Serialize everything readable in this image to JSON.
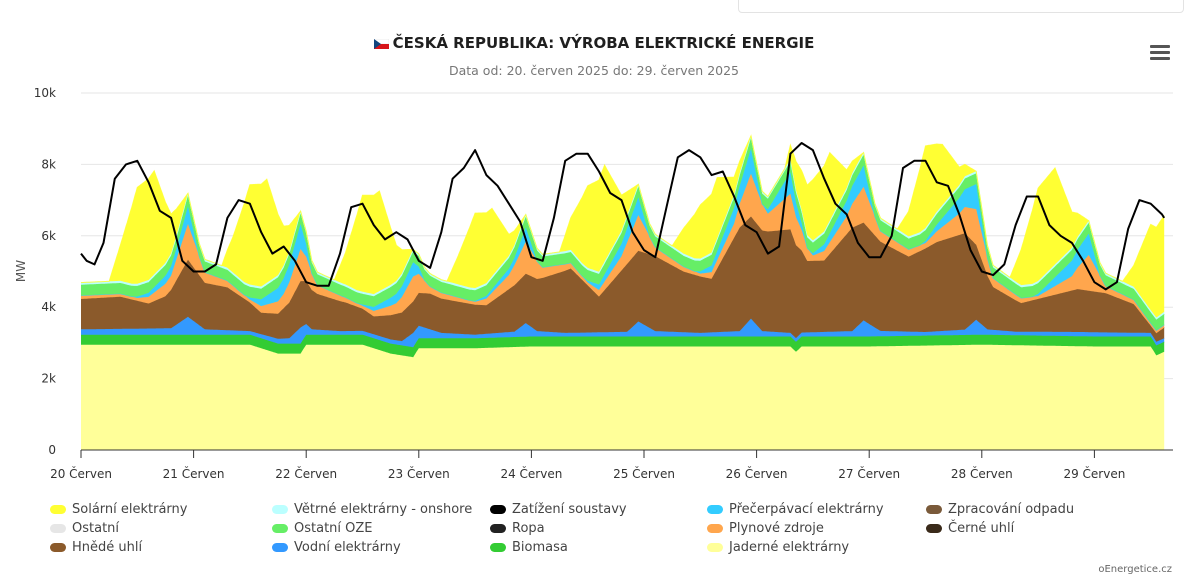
{
  "header": {
    "title": "ČESKÁ REPUBLIKA: VÝROBA ELEKTRICKÉ ENERGIE",
    "subtitle": "Data od: 20. červen 2025 do: 29. červen 2025"
  },
  "footer": {
    "credit": "oEnergetice.cz"
  },
  "chart_data": {
    "type": "area",
    "stacked": true,
    "ylabel": "MW",
    "ylim": [
      0,
      10000
    ],
    "yticks": [
      "0",
      "2k",
      "4k",
      "6k",
      "8k",
      "10k"
    ],
    "x_tick_labels": [
      "20 Červen",
      "21 Červen",
      "22 Červen",
      "23 Červen",
      "24 Červen",
      "25 Červen",
      "26 Červen",
      "27 Červen",
      "28 Červen",
      "29 Červen"
    ],
    "x_start_day": 20,
    "x_end_day": 29.62,
    "grid": true,
    "legend_position": "bottom",
    "legend": [
      "Solární elektrárny",
      "Větrné elektrárny - onshore",
      "Zatížení soustavy",
      "Přečerpávací elektrárny",
      "Zpracování odpadu",
      "Ostatní",
      "Ostatní OZE",
      "Ropa",
      "Plynové zdroje",
      "Černé uhlí",
      "Hnědé uhlí",
      "Vodní elektrárny",
      "Biomasa",
      "Jaderné elektrárny"
    ],
    "series": [
      {
        "name": "Jaderné elektrárny",
        "color": "#ffff99",
        "kind": "area",
        "x": [
          20,
          20.5,
          21.5,
          21.75,
          21.95,
          22,
          22.5,
          22.75,
          22.95,
          23,
          23.5,
          24,
          25,
          26,
          26.3,
          26.35,
          26.4,
          26.5,
          27,
          28,
          29,
          29.5,
          29.55,
          29.62
        ],
        "y": [
          2950,
          2950,
          2950,
          2700,
          2700,
          2950,
          2950,
          2700,
          2600,
          2850,
          2850,
          2900,
          2900,
          2900,
          2900,
          2750,
          2900,
          2900,
          2900,
          2950,
          2900,
          2900,
          2650,
          2750
        ]
      },
      {
        "name": "Biomasa",
        "color": "#33cc33",
        "kind": "area",
        "x": [
          20,
          29.62
        ],
        "y": [
          280,
          280
        ]
      },
      {
        "name": "Vodní elektrárny",
        "color": "#3399ff",
        "kind": "area",
        "x": [
          20,
          20.8,
          20.95,
          21.1,
          21.5,
          21.85,
          21.95,
          22.05,
          22.3,
          22.85,
          22.95,
          23.2,
          23.5,
          23.85,
          23.95,
          24.05,
          24.3,
          24.85,
          24.95,
          25.1,
          25.5,
          25.85,
          25.95,
          26.05,
          26.3,
          26.85,
          26.95,
          27.1,
          27.5,
          27.85,
          27.95,
          28.05,
          28.3,
          28.9,
          29.5,
          29.62
        ],
        "y": [
          150,
          180,
          500,
          150,
          100,
          150,
          450,
          150,
          100,
          120,
          400,
          150,
          100,
          150,
          380,
          150,
          100,
          130,
          420,
          150,
          100,
          150,
          500,
          150,
          100,
          150,
          450,
          150,
          100,
          150,
          420,
          150,
          100,
          120,
          100,
          100
        ]
      },
      {
        "name": "Hnědé uhlí",
        "color": "#8b5a2b",
        "kind": "area",
        "x": [
          20,
          20.35,
          20.6,
          20.75,
          20.95,
          21.1,
          21.3,
          21.6,
          21.75,
          21.95,
          22.1,
          22.35,
          22.6,
          22.85,
          23.1,
          23.35,
          23.6,
          23.85,
          24.1,
          24.35,
          24.6,
          24.85,
          25.1,
          25.35,
          25.6,
          25.85,
          26.1,
          26.3,
          26.45,
          26.6,
          26.85,
          27.1,
          27.35,
          27.6,
          27.85,
          28.1,
          28.35,
          28.6,
          28.85,
          29.1,
          29.35,
          29.5,
          29.62
        ],
        "y": [
          850,
          900,
          700,
          900,
          1600,
          1300,
          1200,
          600,
          700,
          1300,
          1000,
          800,
          500,
          800,
          1000,
          900,
          800,
          1300,
          1500,
          1800,
          1000,
          1900,
          2100,
          1700,
          1500,
          2900,
          2800,
          2900,
          2000,
          2000,
          2900,
          2500,
          2100,
          2500,
          2700,
          1200,
          800,
          1000,
          1200,
          1100,
          800,
          200,
          300
        ]
      },
      {
        "name": "Plynové zdroje",
        "color": "#ffa64d",
        "kind": "area",
        "x": [
          20,
          20.5,
          20.8,
          20.95,
          21.1,
          21.5,
          21.8,
          21.95,
          22.1,
          22.5,
          22.8,
          22.95,
          23.1,
          23.5,
          23.8,
          23.95,
          24.1,
          24.5,
          24.8,
          24.95,
          25.1,
          25.5,
          25.8,
          25.95,
          26.1,
          26.3,
          26.5,
          26.8,
          26.95,
          27.1,
          27.5,
          27.8,
          27.95,
          28.1,
          28.5,
          28.8,
          28.95,
          29.1,
          29.5,
          29.62
        ],
        "y": [
          100,
          80,
          400,
          1000,
          300,
          80,
          400,
          900,
          250,
          80,
          300,
          700,
          200,
          80,
          400,
          900,
          300,
          80,
          400,
          1000,
          250,
          80,
          400,
          1200,
          500,
          1000,
          150,
          500,
          1000,
          300,
          150,
          600,
          1000,
          250,
          80,
          400,
          1000,
          200,
          80,
          80
        ]
      },
      {
        "name": "Přečerpávací elektrárny",
        "color": "#33ccff",
        "kind": "area",
        "x": [
          20,
          20.45,
          20.85,
          20.95,
          21.05,
          21.45,
          21.85,
          21.95,
          22.05,
          22.45,
          22.85,
          22.95,
          23.05,
          23.45,
          23.85,
          23.95,
          24.05,
          24.45,
          24.85,
          24.95,
          25.05,
          25.45,
          25.85,
          25.95,
          26.05,
          26.3,
          26.45,
          26.85,
          26.95,
          27.05,
          27.45,
          27.85,
          27.95,
          28.05,
          28.45,
          28.85,
          28.95,
          29.05,
          29.45,
          29.62
        ],
        "y": [
          0,
          0,
          300,
          500,
          0,
          0,
          500,
          700,
          0,
          0,
          300,
          400,
          0,
          0,
          200,
          400,
          0,
          0,
          400,
          500,
          0,
          0,
          500,
          700,
          0,
          600,
          0,
          500,
          600,
          0,
          0,
          500,
          700,
          0,
          0,
          500,
          600,
          0,
          0,
          0
        ]
      },
      {
        "name": "Ostatní OZE",
        "color": "#66ee66",
        "kind": "area",
        "x": [
          20,
          29.62
        ],
        "y": [
          300,
          300
        ]
      },
      {
        "name": "Větrné elektrárny - onshore",
        "color": "#bbffff",
        "kind": "area",
        "x": [
          20,
          29.62
        ],
        "y": [
          60,
          60
        ]
      },
      {
        "name": "Solární elektrárny",
        "color": "#ffff33",
        "kind": "area",
        "x": [
          20,
          20.25,
          20.35,
          20.5,
          20.65,
          20.8,
          20.95,
          21.25,
          21.35,
          21.5,
          21.65,
          21.8,
          21.95,
          22.25,
          22.35,
          22.5,
          22.65,
          22.8,
          22.95,
          23.25,
          23.35,
          23.5,
          23.65,
          23.8,
          23.95,
          24.25,
          24.35,
          24.5,
          24.65,
          24.8,
          24.95,
          25.25,
          25.35,
          25.5,
          25.65,
          25.8,
          25.95,
          26.25,
          26.35,
          26.5,
          26.65,
          26.8,
          26.95,
          27.25,
          27.35,
          27.5,
          27.65,
          27.8,
          27.95,
          28.25,
          28.35,
          28.5,
          28.65,
          28.8,
          28.95,
          29.25,
          29.35,
          29.5,
          29.62
        ],
        "y": [
          0,
          0,
          1000,
          2700,
          2900,
          1100,
          0,
          0,
          1000,
          2800,
          2900,
          1100,
          0,
          0,
          900,
          2700,
          2800,
          1000,
          0,
          0,
          800,
          2100,
          1900,
          600,
          0,
          0,
          900,
          2300,
          2700,
          1000,
          0,
          0,
          700,
          1500,
          1700,
          500,
          0,
          0,
          800,
          1700,
          1900,
          500,
          0,
          0,
          700,
          2300,
          1700,
          500,
          0,
          0,
          1000,
          2600,
          2700,
          1000,
          0,
          0,
          600,
          2400,
          2700
        ]
      },
      {
        "name": "Zatížení soustavy",
        "color": "#000000",
        "kind": "line",
        "x": [
          20,
          20.05,
          20.12,
          20.2,
          20.3,
          20.4,
          20.5,
          20.6,
          20.7,
          20.8,
          20.9,
          21,
          21.1,
          21.2,
          21.3,
          21.4,
          21.5,
          21.6,
          21.7,
          21.8,
          21.9,
          22,
          22.1,
          22.2,
          22.3,
          22.4,
          22.5,
          22.6,
          22.7,
          22.8,
          22.9,
          23,
          23.1,
          23.2,
          23.3,
          23.4,
          23.5,
          23.6,
          23.7,
          23.8,
          23.9,
          24,
          24.1,
          24.2,
          24.3,
          24.4,
          24.5,
          24.6,
          24.7,
          24.8,
          24.9,
          25,
          25.1,
          25.2,
          25.3,
          25.4,
          25.5,
          25.6,
          25.7,
          25.8,
          25.9,
          26,
          26.1,
          26.2,
          26.3,
          26.4,
          26.5,
          26.6,
          26.7,
          26.8,
          26.9,
          27,
          27.1,
          27.2,
          27.3,
          27.4,
          27.5,
          27.6,
          27.7,
          27.8,
          27.9,
          28,
          28.1,
          28.2,
          28.3,
          28.4,
          28.5,
          28.6,
          28.7,
          28.8,
          28.9,
          29,
          29.1,
          29.2,
          29.3,
          29.4,
          29.5,
          29.6,
          29.62
        ],
        "y": [
          5500,
          5300,
          5200,
          5800,
          7600,
          8000,
          8100,
          7500,
          6700,
          6500,
          5300,
          5000,
          5000,
          5200,
          6500,
          7000,
          6900,
          6100,
          5500,
          5700,
          5300,
          4700,
          4600,
          4600,
          5500,
          6800,
          6900,
          6300,
          5900,
          6100,
          5900,
          5300,
          5100,
          6100,
          7600,
          7900,
          8400,
          7700,
          7400,
          6900,
          6400,
          5400,
          5300,
          6500,
          8100,
          8300,
          8300,
          7800,
          7200,
          7000,
          6100,
          5600,
          5400,
          6800,
          8200,
          8400,
          8200,
          7700,
          7800,
          7100,
          6300,
          6100,
          5500,
          5700,
          8300,
          8600,
          8400,
          7600,
          6900,
          6600,
          5800,
          5400,
          5400,
          6000,
          7900,
          8100,
          8100,
          7500,
          7400,
          6600,
          5600,
          5000,
          4900,
          5200,
          6300,
          7100,
          7100,
          6300,
          6000,
          5800,
          5300,
          4700,
          4500,
          4700,
          6200,
          7000,
          6900,
          6600,
          6500
        ]
      }
    ]
  }
}
